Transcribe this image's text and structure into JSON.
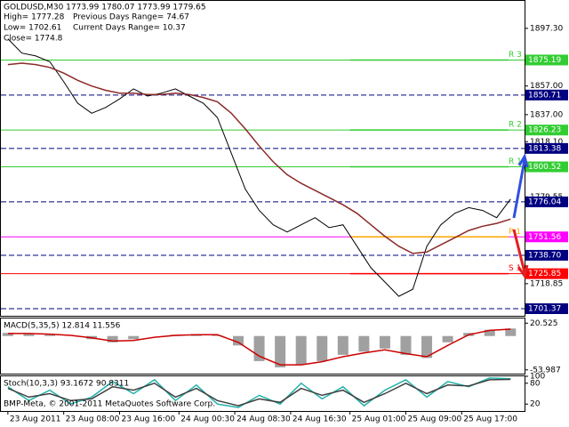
{
  "chart_data": [
    {
      "type": "line",
      "title": "GOLDUSD,M30  1773.99 1780.07 1773.99 1779.65",
      "annotations": [
        "High= 1777.28",
        "Previous Days Range= 74.67",
        "Low= 1702.61",
        "Current Days Range= 10.37",
        "Close= 1774.8"
      ],
      "xlim": [
        -2,
        148
      ],
      "ylim": [
        1696.4,
        1916.5
      ],
      "xticks": [
        {
          "value": 0,
          "label": "23 Aug 2011"
        },
        {
          "value": 16,
          "label": "23 Aug 08:00"
        },
        {
          "value": 32,
          "label": "23 Aug 16:00"
        },
        {
          "value": 49,
          "label": "24 Aug 00:30"
        },
        {
          "value": 65,
          "label": "24 Aug 08:30"
        },
        {
          "value": 81,
          "label": "24 Aug 16:30"
        },
        {
          "value": 98,
          "label": "25 Aug 01:00"
        },
        {
          "value": 114,
          "label": "25 Aug 09:00"
        },
        {
          "value": 130,
          "label": "25 Aug 17:00"
        }
      ],
      "yticks": [
        {
          "value": 1897.3,
          "label": "1897.30"
        },
        {
          "value": 1857,
          "label": "1857.00"
        },
        {
          "value": 1837,
          "label": "1837.00"
        },
        {
          "value": 1818.1,
          "label": "1818.10"
        },
        {
          "value": 1779.55,
          "label": "1779.55"
        },
        {
          "value": 1718.85,
          "label": "1718.85"
        }
      ],
      "x": [
        0,
        4,
        8,
        12,
        16,
        20,
        24,
        28,
        32,
        36,
        40,
        44,
        48,
        52,
        56,
        60,
        64,
        68,
        72,
        76,
        80,
        84,
        88,
        92,
        96,
        100,
        104,
        108,
        112,
        116,
        120,
        124,
        128,
        132,
        136,
        140,
        144
      ],
      "series": [
        {
          "color": "#000000",
          "values": [
            1890,
            1880,
            1878,
            1874,
            1860,
            1845,
            1838,
            1842,
            1848,
            1855,
            1850,
            1852,
            1855,
            1850,
            1845,
            1835,
            1810,
            1785,
            1770,
            1760,
            1755,
            1760,
            1765,
            1758,
            1760,
            1745,
            1730,
            1720,
            1710,
            1715,
            1745,
            1760,
            1768,
            1772,
            1770,
            1765,
            1778
          ]
        },
        {
          "color": "#8b2a2a",
          "values": [
            1872,
            1873,
            1872,
            1870,
            1866,
            1861,
            1857,
            1854,
            1852,
            1852,
            1851,
            1851,
            1852,
            1851,
            1849,
            1846,
            1838,
            1827,
            1815,
            1804,
            1795,
            1789,
            1784,
            1779,
            1774,
            1768,
            1760,
            1752,
            1745,
            1740,
            1741,
            1746,
            1751,
            1756,
            1759,
            1761,
            1764
          ]
        }
      ],
      "levels": [
        {
          "value": 1875.19,
          "color": "#32cd32"
        },
        {
          "value": 1850.71,
          "color": "#000080"
        },
        {
          "value": 1826.23,
          "color": "#32cd32"
        },
        {
          "value": 1813.38,
          "color": "#000080"
        },
        {
          "value": 1800.52,
          "color": "#32cd32"
        },
        {
          "value": 1776.04,
          "color": "#000080"
        },
        {
          "value": 1751.56,
          "color": "#ff00ff"
        },
        {
          "value": 1738.7,
          "label": "1738.70",
          "color": "#000080"
        },
        {
          "value": 1725.85,
          "color": "#ff0000"
        },
        {
          "value": 1701.37,
          "color": "#000080"
        }
      ],
      "pivots": [
        {
          "label": "R 3",
          "value": 1875.19,
          "color": "#32cd32"
        },
        {
          "label": "R 2",
          "value": 1826.23,
          "color": "#32cd32"
        },
        {
          "label": "R 1",
          "value": 1800.52,
          "color": "#32cd32"
        },
        {
          "label": "P 1",
          "value": 1751.56,
          "color": "#ffa500"
        },
        {
          "label": "S 1",
          "value": 1725.85,
          "color": "#ff0000"
        }
      ]
    },
    {
      "type": "bar",
      "title": "MACD(5,35,5) 12.814 11.556",
      "color": "#a0a0a0",
      "xlim": [
        -2,
        148
      ],
      "ylim": [
        -60,
        28
      ],
      "yticks": [
        20.525,
        -53.987
      ],
      "x": [
        0,
        6,
        12,
        18,
        24,
        30,
        36,
        42,
        48,
        54,
        60,
        66,
        72,
        78,
        84,
        90,
        96,
        102,
        108,
        114,
        120,
        126,
        132,
        138,
        144
      ],
      "values": [
        5,
        3,
        2,
        0,
        -5,
        -10,
        -5,
        0,
        2,
        3,
        1,
        -15,
        -40,
        -50,
        -45,
        -40,
        -30,
        -25,
        -20,
        -30,
        -35,
        -10,
        5,
        10,
        12
      ],
      "series": [
        {
          "color": "#cc0000",
          "values": [
            4,
            4,
            3,
            1,
            -3,
            -8,
            -7,
            -2,
            1,
            2,
            2,
            -10,
            -32,
            -46,
            -46,
            -41,
            -33,
            -27,
            -22,
            -28,
            -33,
            -15,
            2,
            9,
            11
          ]
        }
      ]
    },
    {
      "type": "line",
      "title": "Stoch(10,3,3) 93.1672 90.8311",
      "annotations": [
        "BMP-Meta, © 2001-2011 MetaQuotes Software Corp."
      ],
      "xlim": [
        -2,
        148
      ],
      "ylim": [
        0,
        100
      ],
      "yticks": [
        100,
        80,
        20
      ],
      "x": [
        0,
        6,
        12,
        18,
        24,
        30,
        36,
        42,
        48,
        54,
        60,
        66,
        72,
        78,
        84,
        90,
        96,
        102,
        108,
        114,
        120,
        126,
        132,
        138,
        144
      ],
      "series": [
        {
          "color": "#20b2aa",
          "values": [
            70,
            30,
            60,
            20,
            40,
            85,
            50,
            90,
            30,
            75,
            20,
            10,
            45,
            20,
            80,
            35,
            70,
            15,
            60,
            90,
            40,
            85,
            70,
            95,
            93
          ]
        },
        {
          "color": "#404040",
          "values": [
            65,
            40,
            50,
            30,
            35,
            70,
            60,
            80,
            40,
            65,
            30,
            15,
            35,
            25,
            65,
            45,
            60,
            25,
            50,
            80,
            50,
            75,
            72,
            90,
            91
          ]
        }
      ]
    }
  ]
}
